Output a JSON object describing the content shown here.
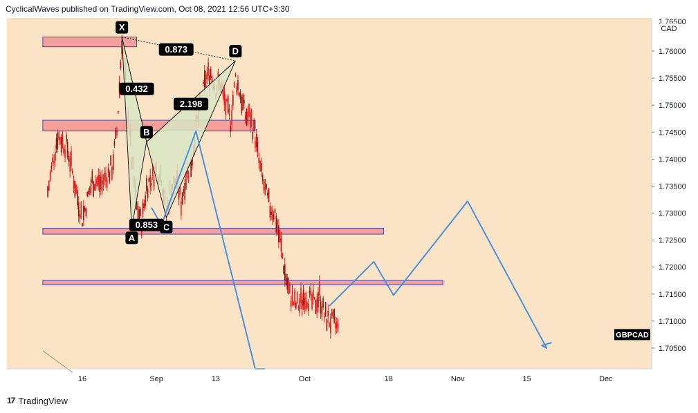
{
  "header": {
    "publisher_text": "CyclicalWaves published on TradingView.com, Oct 08, 2021 12:56 UTC+3:30"
  },
  "footer": {
    "logo_icon": "tradingview-logo-icon",
    "logo_glyph": "17",
    "brand": "TradingView"
  },
  "colors": {
    "background": "#fbe3c5",
    "zone_fill": "#f4a09a",
    "zone_border": "#4a4ab0",
    "candle": "#e02020",
    "projection": "#4a90e2",
    "harmonic_fill": "#d8e6c4",
    "harmonic_line": "#1a1a1a",
    "label_bg": "#000000",
    "label_text": "#ffffff"
  },
  "chart_data": {
    "type": "candlestick",
    "symbol_label": "GBPCAD",
    "currency_label": "CAD",
    "ylim": [
      1.7005,
      1.7645
    ],
    "y_ticks": [
      "1.75000",
      "1.74500",
      "1.74000",
      "1.73500",
      "1.73000",
      "1.72500",
      "1.72000",
      "1.71500",
      "1.71000",
      "1.70500",
      "1.76000",
      "1.75500"
    ],
    "y_tick_values": [
      1.75,
      1.745,
      1.74,
      1.735,
      1.73,
      1.725,
      1.72,
      1.715,
      1.71,
      1.705,
      1.76,
      1.755
    ],
    "y_top_partial_label": "1.76500",
    "x_ticks": [
      {
        "label": "16",
        "day": -14
      },
      {
        "label": "Sep",
        "day": 1
      },
      {
        "label": "13",
        "day": 13
      },
      {
        "label": "Oct",
        "day": 31
      },
      {
        "label": "18",
        "day": 48
      },
      {
        "label": "Nov",
        "day": 62
      },
      {
        "label": "15",
        "day": 76
      },
      {
        "label": "Dec",
        "day": 92
      },
      {
        "label": "13",
        "day": 104
      }
    ],
    "candle_path": [
      [
        -21,
        1.734
      ],
      [
        -19,
        1.7445
      ],
      [
        -17,
        1.742
      ],
      [
        -15,
        1.733
      ],
      [
        -14,
        1.729
      ],
      [
        -12,
        1.736
      ],
      [
        -10,
        1.7355
      ],
      [
        -8,
        1.7385
      ],
      [
        -7,
        1.745
      ],
      [
        -6,
        1.762
      ],
      [
        -5,
        1.752
      ],
      [
        -4,
        1.74
      ],
      [
        -3,
        1.731
      ],
      [
        -2,
        1.728
      ],
      [
        -1,
        1.735
      ],
      [
        1,
        1.738
      ],
      [
        2,
        1.737
      ],
      [
        3,
        1.73
      ],
      [
        4,
        1.735
      ],
      [
        5,
        1.736
      ],
      [
        6,
        1.732
      ],
      [
        7,
        1.737
      ],
      [
        8,
        1.739
      ],
      [
        9,
        1.746
      ],
      [
        10,
        1.75
      ],
      [
        11,
        1.755
      ],
      [
        12,
        1.756
      ],
      [
        13,
        1.753
      ],
      [
        14,
        1.754
      ],
      [
        15,
        1.75
      ],
      [
        16,
        1.747
      ],
      [
        17,
        1.755
      ],
      [
        18,
        1.752
      ],
      [
        19,
        1.748
      ],
      [
        20,
        1.748
      ],
      [
        21,
        1.744
      ],
      [
        22,
        1.738
      ],
      [
        23,
        1.734
      ],
      [
        24,
        1.731
      ],
      [
        25,
        1.73
      ],
      [
        26,
        1.725
      ],
      [
        27,
        1.719
      ],
      [
        28,
        1.715
      ],
      [
        29,
        1.713
      ],
      [
        30,
        1.713
      ],
      [
        31,
        1.715
      ],
      [
        32,
        1.714
      ],
      [
        33,
        1.713
      ],
      [
        34,
        1.715
      ],
      [
        35,
        1.711
      ],
      [
        36,
        1.71
      ],
      [
        37,
        1.7095
      ],
      [
        38,
        1.708
      ]
    ],
    "zones": [
      {
        "day_start": -22,
        "day_end": -3,
        "price_low": 1.7608,
        "price_high": 1.7626
      },
      {
        "day_start": -22,
        "day_end": 21,
        "price_low": 1.7452,
        "price_high": 1.7472
      },
      {
        "day_start": -22,
        "day_end": 47,
        "price_low": 1.7261,
        "price_high": 1.7272
      },
      {
        "day_start": -22,
        "day_end": 59,
        "price_low": 1.7167,
        "price_high": 1.7175
      }
    ],
    "harmonic_pattern": {
      "points": [
        {
          "label": "X",
          "day": -6,
          "price": 1.7626
        },
        {
          "label": "A",
          "day": -4,
          "price": 1.7272
        },
        {
          "label": "B",
          "day": -1,
          "price": 1.7432
        },
        {
          "label": "C",
          "day": 3,
          "price": 1.7292
        },
        {
          "label": "D",
          "day": 17,
          "price": 1.7582
        }
      ],
      "ratios": [
        {
          "label": "0.432",
          "day": -3,
          "price": 1.753
        },
        {
          "label": "2.198",
          "day": 8,
          "price": 1.7502
        },
        {
          "label": "0.873",
          "day": 5,
          "price": 1.7603
        },
        {
          "label": "0.853",
          "day": -1,
          "price": 1.7278
        }
      ]
    },
    "projection_path_1": [
      [
        0,
        1.731
      ],
      [
        2,
        1.7278
      ],
      [
        9,
        1.7452
      ],
      [
        21,
        1.7
      ],
      [
        22,
        1.7
      ],
      [
        23,
        1.7005
      ]
    ],
    "projection_path_2": [
      [
        36,
        1.7128
      ],
      [
        45,
        1.721
      ],
      [
        49,
        1.7148
      ],
      [
        64,
        1.7322
      ],
      [
        80,
        1.705
      ],
      [
        79,
        1.7055
      ],
      [
        81,
        1.706
      ]
    ],
    "bottom_left_line": [
      [
        -22,
        1.7045
      ],
      [
        -16,
        1.7005
      ]
    ],
    "price_label_box": {
      "day": 100,
      "price": 1.7075
    }
  }
}
